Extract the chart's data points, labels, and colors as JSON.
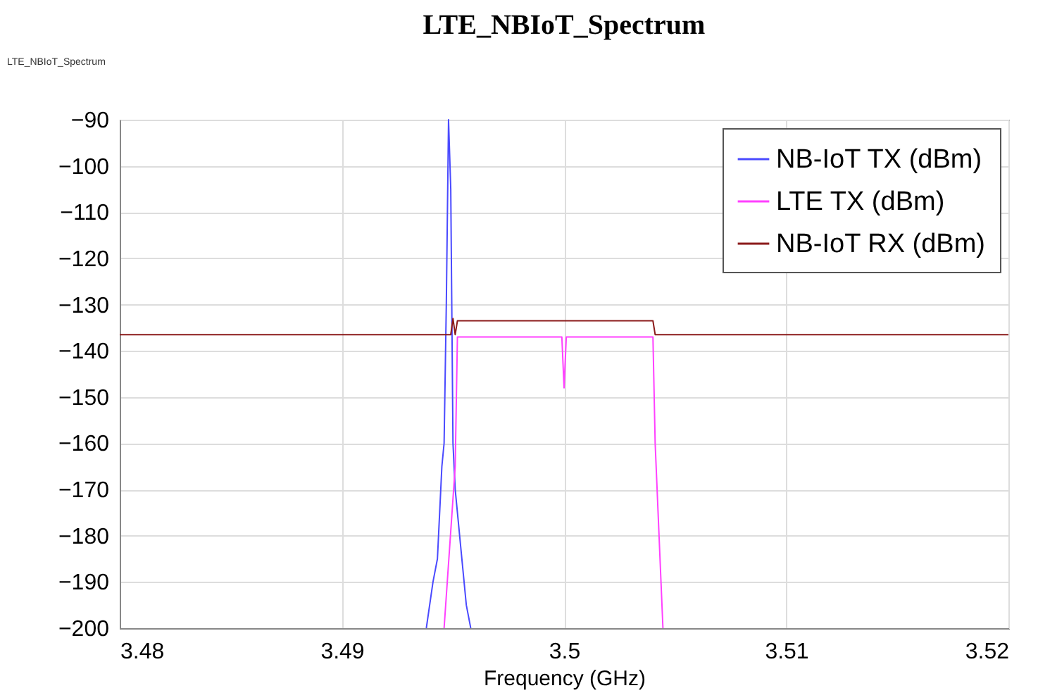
{
  "chart_data": {
    "type": "line",
    "title": "LTE_NBIoT_Spectrum",
    "xlabel": "Frequency (GHz)",
    "annotations": [
      "LTE_NBIoT_Spectrum"
    ],
    "xlim": [
      3.48,
      3.52
    ],
    "xticks": [
      3.48,
      3.49,
      3.5,
      3.51,
      3.52
    ],
    "ylim": [
      -200,
      -90
    ],
    "yticks": [
      -200,
      -190,
      -180,
      -170,
      -160,
      -150,
      -140,
      -130,
      -120,
      -110,
      -100,
      -90
    ],
    "grid": true,
    "legend": "top right",
    "line_style": "solid",
    "marker": "none",
    "series": [
      {
        "name": "NB-IoT TX (dBm)",
        "color": "#4a4aff",
        "x": [
          3.4938,
          3.4941,
          3.4943,
          3.4944,
          3.4945,
          3.4946,
          3.4947,
          3.4948,
          3.4949,
          3.495,
          3.4951,
          3.4952,
          3.4954,
          3.4956,
          3.4958
        ],
        "values": [
          -200,
          -190,
          -185,
          -175,
          -165,
          -160,
          -130,
          -90,
          -105,
          -160,
          -170,
          -175,
          -185,
          -195,
          -200
        ]
      },
      {
        "name": "LTE TX (dBm)",
        "color": "#ff40ff",
        "x": [
          3.4946,
          3.4951,
          3.4952,
          3.4975,
          3.4999,
          3.5,
          3.5001,
          3.5025,
          3.504,
          3.5041,
          3.50445
        ],
        "values": [
          -200,
          -165,
          -137,
          -137,
          -137,
          -148,
          -137,
          -137,
          -137,
          -160,
          -200
        ]
      },
      {
        "name": "NB-IoT RX (dBm)",
        "color": "#8b1a1a",
        "x": [
          3.48,
          3.49,
          3.4949,
          3.495,
          3.4951,
          3.4952,
          3.4975,
          3.5,
          3.5025,
          3.504,
          3.5041,
          3.51,
          3.52
        ],
        "values": [
          -136.5,
          -136.5,
          -136.5,
          -133,
          -136.5,
          -133.5,
          -133.5,
          -133.5,
          -133.5,
          -133.5,
          -136.5,
          -136.5,
          -136.5
        ]
      }
    ]
  }
}
